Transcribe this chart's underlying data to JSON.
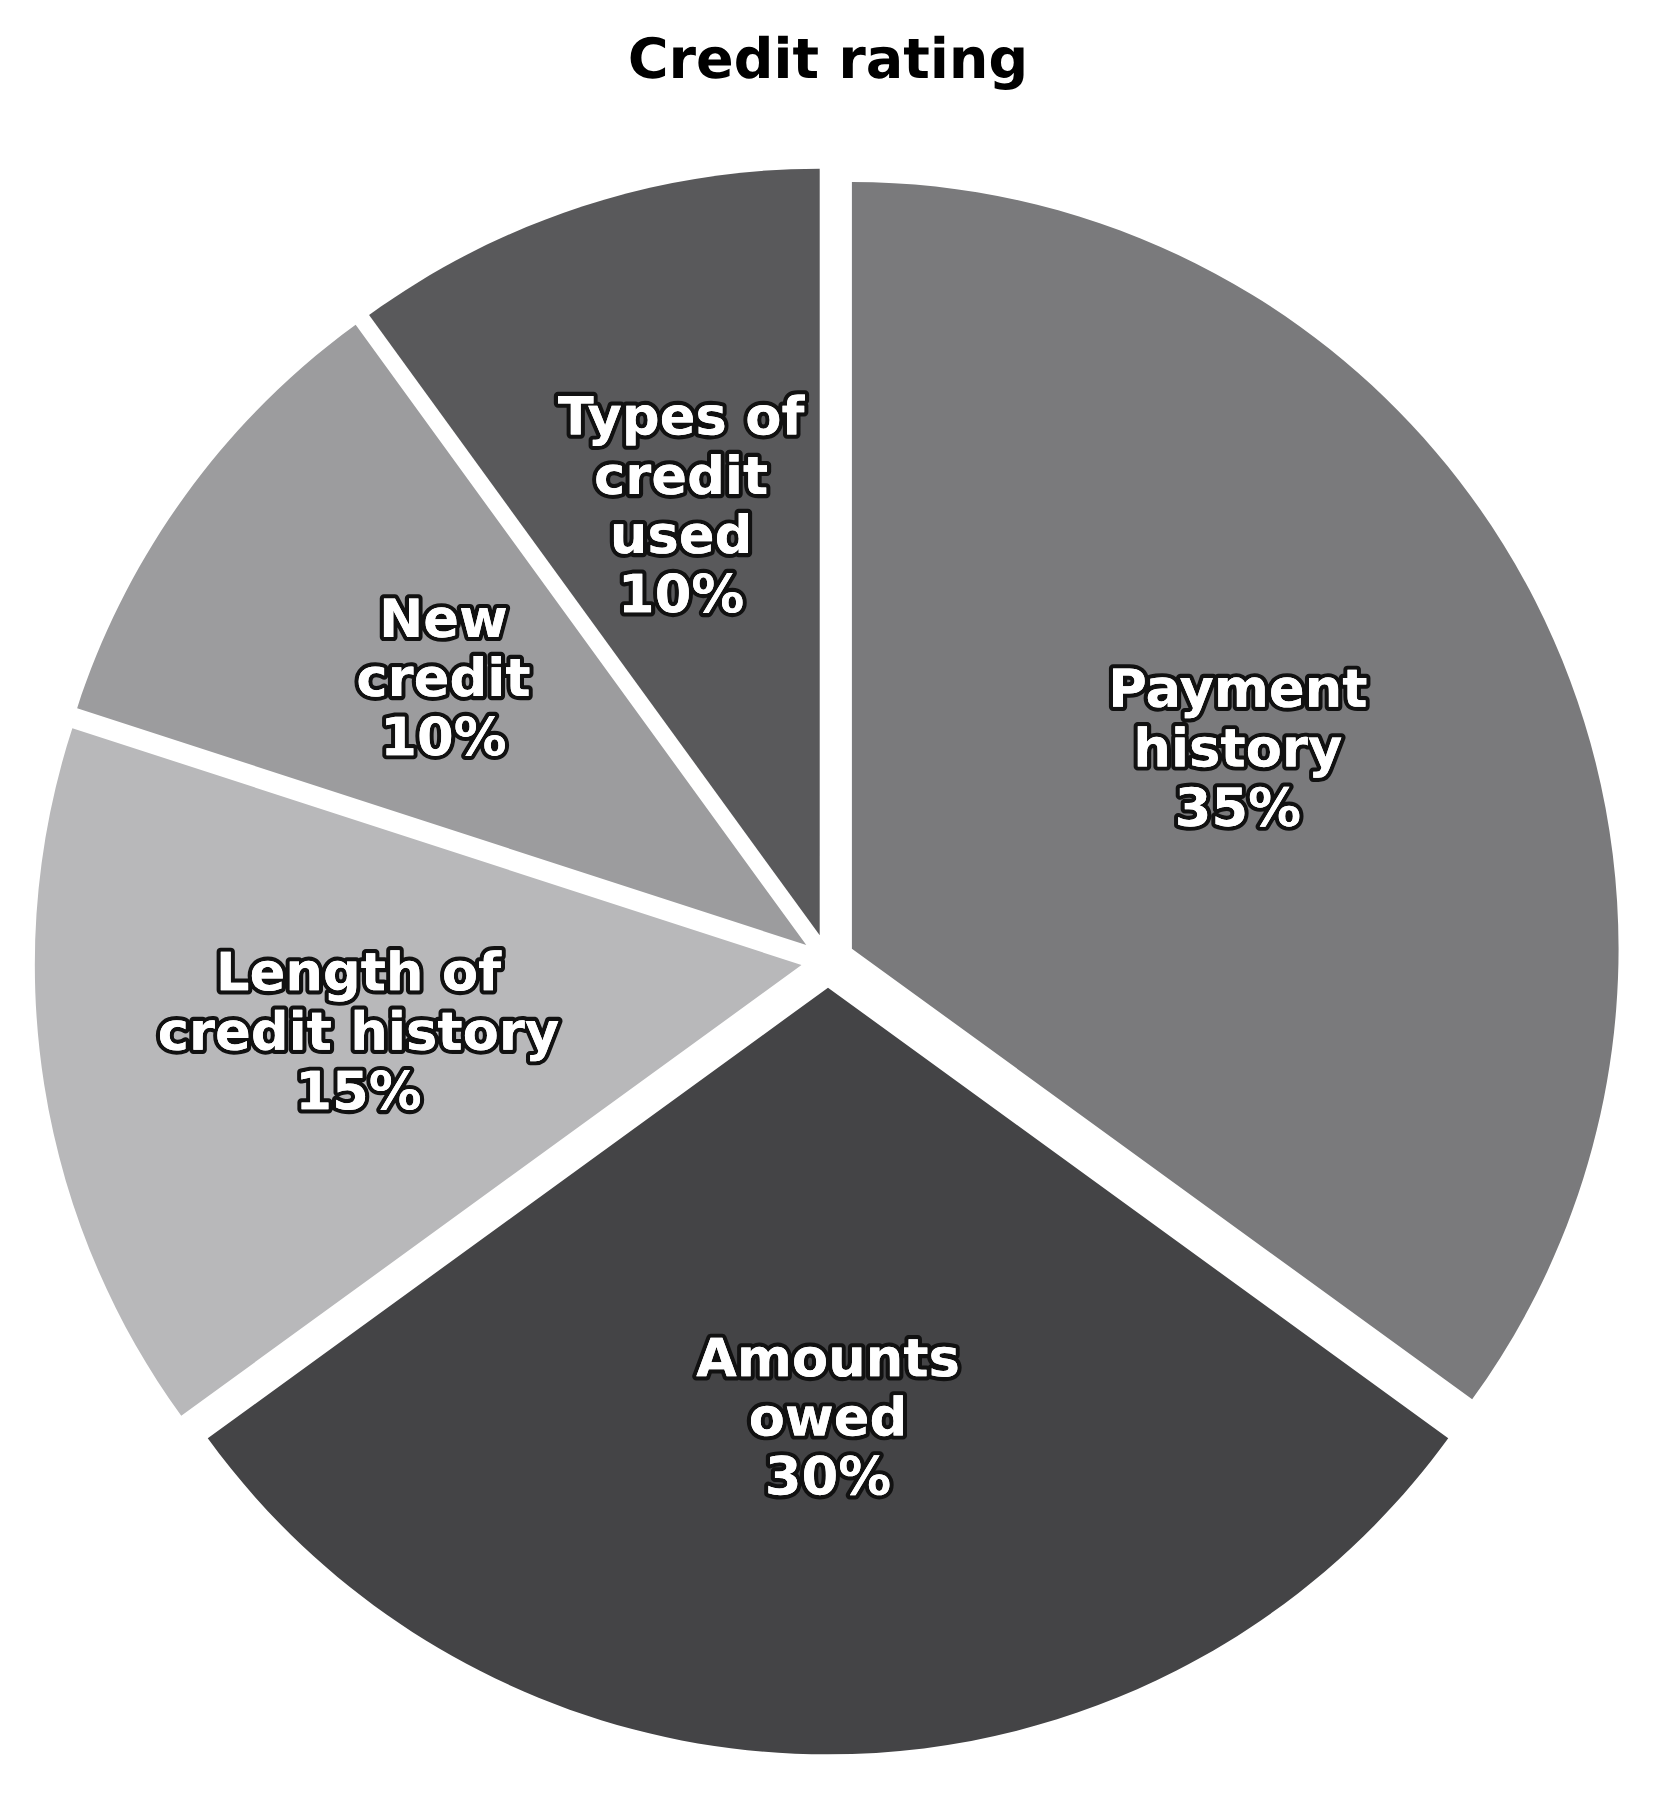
{
  "chart_data": {
    "type": "pie",
    "title": "Credit rating",
    "categories": [
      "Payment\nhistory",
      "Amounts\nowed",
      "Length of\ncredit history",
      "New\ncredit",
      "Types of\ncredit\nused"
    ],
    "values": [
      35,
      30,
      15,
      10,
      10
    ],
    "value_labels": [
      "35%",
      "30%",
      "15%",
      "10%",
      "10%"
    ],
    "colors": [
      "#7a7a7c",
      "#444446",
      "#b8b8ba",
      "#9c9c9e",
      "#59595b"
    ],
    "legend": false
  }
}
